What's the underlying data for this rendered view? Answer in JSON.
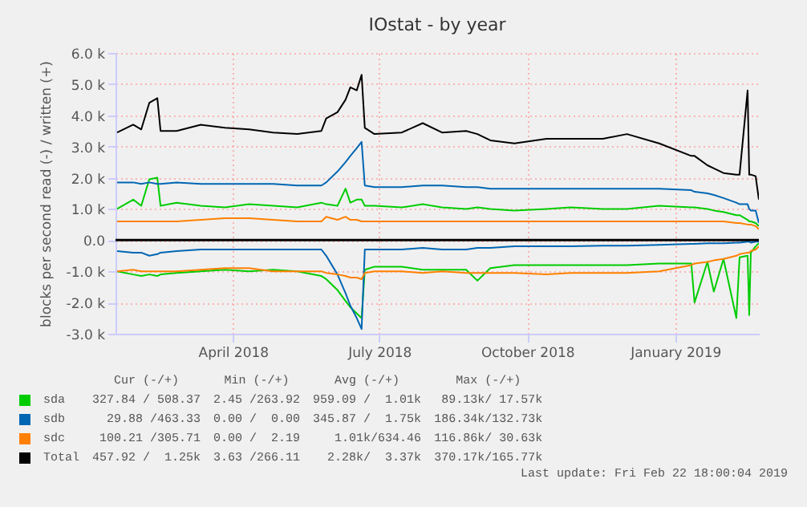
{
  "chart_data": {
    "type": "line",
    "title": "IOstat - by year",
    "ylabel": "blocks per second read (-) / written (+)",
    "x": [
      "2018-01-19",
      "2018-01-29",
      "2018-02-03",
      "2018-02-08",
      "2018-02-13",
      "2018-02-15",
      "2018-02-25",
      "2018-03-12",
      "2018-03-27",
      "2018-04-11",
      "2018-04-26",
      "2018-05-11",
      "2018-05-26",
      "2018-05-29",
      "2018-06-05",
      "2018-06-10",
      "2018-06-13",
      "2018-06-17",
      "2018-06-20",
      "2018-06-22",
      "2018-06-28",
      "2018-07-15",
      "2018-07-28",
      "2018-08-09",
      "2018-08-24",
      "2018-08-31",
      "2018-09-08",
      "2018-09-23",
      "2018-10-13",
      "2018-10-28",
      "2018-11-17",
      "2018-12-02",
      "2018-12-22",
      "2019-01-11",
      "2019-01-13",
      "2019-01-21",
      "2019-01-25",
      "2019-01-31",
      "2019-02-08",
      "2019-02-10",
      "2019-02-15",
      "2019-02-16",
      "2019-02-17",
      "2019-02-20",
      "2019-02-22"
    ],
    "series": [
      {
        "name": "sda",
        "color": "#00cc00",
        "values": [
          1000,
          1300,
          1100,
          1950,
          2000,
          1100,
          1200,
          1100,
          1050,
          1150,
          1100,
          1050,
          1200,
          1150,
          1100,
          1650,
          1200,
          1300,
          1300,
          1100,
          1100,
          1050,
          1150,
          1050,
          1000,
          1050,
          1000,
          950,
          1000,
          1050,
          1000,
          1000,
          1100,
          1050,
          1050,
          1000,
          950,
          900,
          800,
          800,
          650,
          600,
          600,
          550,
          450
        ]
      },
      {
        "color": "#00cc00",
        "values": [
          -1000,
          -1100,
          -1150,
          -1100,
          -1150,
          -1100,
          -1050,
          -1000,
          -950,
          -1000,
          -950,
          -1000,
          -1150,
          -1250,
          -1600,
          -1950,
          -2150,
          -2350,
          -2500,
          -950,
          -850,
          -850,
          -950,
          -950,
          -950,
          -1300,
          -900,
          -800,
          -800,
          -800,
          -800,
          -800,
          -750,
          -750,
          -2000,
          -700,
          -1650,
          -600,
          -2500,
          -550,
          -500,
          -2400,
          -400,
          -200,
          -100
        ]
      },
      {
        "name": "sdb",
        "color": "#0066b3",
        "values": [
          1850,
          1850,
          1800,
          1850,
          1800,
          1800,
          1850,
          1800,
          1800,
          1800,
          1800,
          1750,
          1750,
          1850,
          2200,
          2500,
          2700,
          2950,
          3150,
          1750,
          1700,
          1700,
          1750,
          1750,
          1700,
          1700,
          1650,
          1650,
          1650,
          1650,
          1650,
          1650,
          1650,
          1600,
          1550,
          1500,
          1450,
          1350,
          1200,
          1150,
          1150,
          1000,
          950,
          950,
          550
        ]
      },
      {
        "color": "#0066b3",
        "values": [
          -350,
          -400,
          -400,
          -500,
          -450,
          -400,
          -350,
          -300,
          -300,
          -300,
          -300,
          -300,
          -300,
          -500,
          -1100,
          -1700,
          -2100,
          -2500,
          -2850,
          -300,
          -300,
          -300,
          -250,
          -300,
          -300,
          -250,
          -250,
          -200,
          -200,
          -200,
          -180,
          -180,
          -150,
          -120,
          -120,
          -100,
          -100,
          -100,
          -80,
          -80,
          -50,
          -50,
          -80,
          -50,
          -50
        ]
      },
      {
        "name": "sdc",
        "color": "#ff8000",
        "values": [
          600,
          600,
          600,
          600,
          600,
          600,
          600,
          650,
          700,
          700,
          650,
          600,
          600,
          750,
          650,
          750,
          650,
          650,
          600,
          600,
          600,
          600,
          600,
          600,
          600,
          600,
          600,
          600,
          600,
          600,
          600,
          600,
          600,
          600,
          600,
          600,
          600,
          600,
          550,
          550,
          500,
          500,
          500,
          450,
          350
        ]
      },
      {
        "color": "#ff8000",
        "values": [
          -1000,
          -950,
          -1000,
          -1000,
          -1000,
          -1000,
          -1000,
          -950,
          -900,
          -900,
          -1000,
          -1000,
          -1000,
          -1050,
          -1100,
          -1150,
          -1200,
          -1200,
          -1250,
          -1050,
          -1000,
          -1000,
          -1050,
          -1000,
          -1050,
          -1050,
          -1050,
          -1050,
          -1100,
          -1050,
          -1050,
          -1050,
          -1000,
          -800,
          -750,
          -700,
          -650,
          -600,
          -500,
          -450,
          -400,
          -400,
          -350,
          -300,
          -200
        ]
      },
      {
        "name": "Total",
        "color": "#000000",
        "values": [
          3450,
          3700,
          3550,
          4400,
          4550,
          3500,
          3500,
          3700,
          3600,
          3550,
          3450,
          3400,
          3500,
          3900,
          4100,
          4500,
          4900,
          4800,
          5300,
          3600,
          3400,
          3450,
          3750,
          3450,
          3500,
          3400,
          3200,
          3100,
          3250,
          3250,
          3250,
          3400,
          3100,
          2700,
          2700,
          2400,
          2300,
          2150,
          2100,
          2100,
          4800,
          2100,
          2100,
          2050,
          1300
        ]
      }
    ],
    "xlim": [
      "2018-01-18",
      "2019-02-22"
    ],
    "xticks": [
      {
        "value": "2018-04-01",
        "label": "April 2018"
      },
      {
        "value": "2018-07-01",
        "label": "July 2018"
      },
      {
        "value": "2018-10-01",
        "label": "October 2018"
      },
      {
        "value": "2019-01-01",
        "label": "January 2019"
      }
    ],
    "ylim": [
      -3000,
      6000
    ],
    "yticks": [
      {
        "value": -3000,
        "label": "-3.0 k"
      },
      {
        "value": -2000,
        "label": "-2.0 k"
      },
      {
        "value": -1000,
        "label": "-1.0 k"
      },
      {
        "value": 0,
        "label": "0.0"
      },
      {
        "value": 1000,
        "label": "1.0 k"
      },
      {
        "value": 2000,
        "label": "2.0 k"
      },
      {
        "value": 3000,
        "label": "3.0 k"
      },
      {
        "value": 4000,
        "label": "4.0 k"
      },
      {
        "value": 5000,
        "label": "5.0 k"
      },
      {
        "value": 6000,
        "label": "6.0 k"
      }
    ],
    "ref_lines": [
      {
        "axis": "y",
        "value": 0,
        "color": "#000000"
      }
    ],
    "grid": true,
    "legend": "bottom",
    "annotations": [
      "Cur (-/+)",
      "Min (-/+)",
      "Avg (-/+)",
      "Max (-/+)",
      "327.84 / 508.37",
      "2.45 /263.92",
      "959.09 /  1.01k",
      "89.13k/ 17.57k",
      "29.88 /463.33",
      "0.00 /  0.00",
      "345.87 /  1.75k",
      "186.34k/132.73k",
      "100.21 /305.71",
      "0.00 /  2.19",
      "1.01k/634.46",
      "116.86k/ 30.63k",
      "457.92 /  1.25k",
      "3.63 /266.11",
      "2.28k/  3.37k",
      "370.17k/165.77k",
      "Last update: Fri Feb 22 18:00:04 2019"
    ]
  }
}
